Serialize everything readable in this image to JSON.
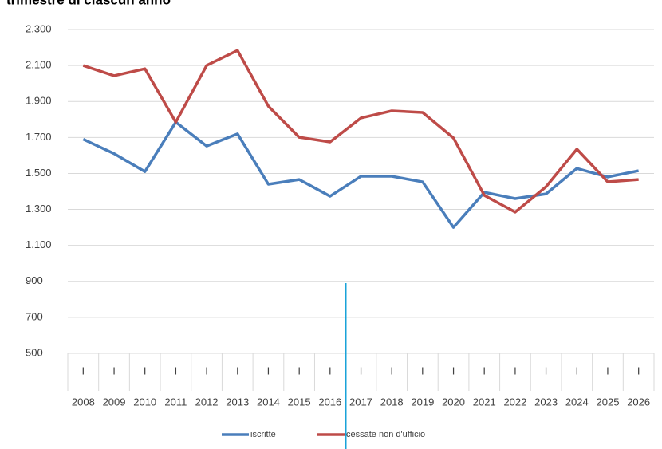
{
  "chart_data": {
    "type": "line",
    "title": "trimestre di ciascun anno",
    "categories": [
      "2008",
      "2009",
      "2010",
      "2011",
      "2012",
      "2013",
      "2014",
      "2015",
      "2016",
      "2017",
      "2018",
      "2019",
      "2020",
      "2021",
      "2022",
      "2023",
      "2024",
      "2025",
      "2026"
    ],
    "quarter_labels": [
      "I",
      "I",
      "I",
      "I",
      "I",
      "I",
      "I",
      "I",
      "I",
      "I",
      "I",
      "I",
      "I",
      "I",
      "I",
      "I",
      "I",
      "I",
      "I"
    ],
    "series": [
      {
        "name": "iscritte",
        "color": "#4a7ebb",
        "values": [
          1690,
          1610,
          1510,
          1785,
          1652,
          1720,
          1440,
          1466,
          1373,
          1484,
          1484,
          1453,
          1200,
          1395,
          1360,
          1386,
          1528,
          1480,
          1515
        ]
      },
      {
        "name": "cessate non d'ufficio",
        "color": "#be4b48",
        "values": [
          2100,
          2043,
          2082,
          1785,
          2100,
          2184,
          1874,
          1701,
          1675,
          1808,
          1848,
          1839,
          1697,
          1378,
          1285,
          1426,
          1635,
          1453,
          1466
        ]
      }
    ],
    "ylim": [
      500,
      2300
    ],
    "yticks": [
      {
        "value": 500,
        "label": "500"
      },
      {
        "value": 700,
        "label": "700"
      },
      {
        "value": 900,
        "label": "900"
      },
      {
        "value": 1100,
        "label": "1.100"
      },
      {
        "value": 1300,
        "label": "1.300"
      },
      {
        "value": 1500,
        "label": "1.500"
      },
      {
        "value": 1700,
        "label": "1.700"
      },
      {
        "value": 1900,
        "label": "1.900"
      },
      {
        "value": 2100,
        "label": "2.100"
      },
      {
        "value": 2300,
        "label": "2.300"
      }
    ],
    "grid": true,
    "legend": "bottom"
  }
}
